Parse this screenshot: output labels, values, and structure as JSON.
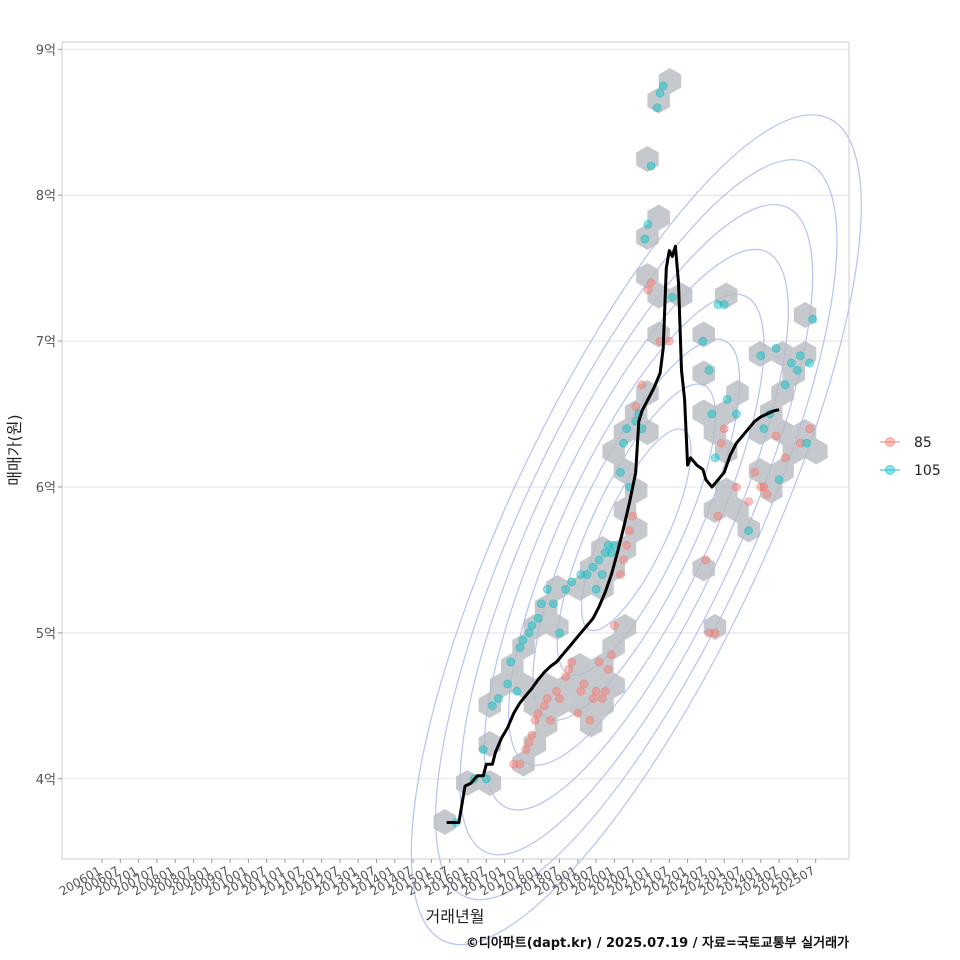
{
  "chart_data": {
    "type": "scatter",
    "ylabel": "매매가(원)",
    "xlabel": "거래년월",
    "caption": "©디아파트(dapt.kr) / 2025.07.19 / 자료=국토교통부 실거래가",
    "y_ticks": [
      {
        "value": 4,
        "label": "4억"
      },
      {
        "value": 5,
        "label": "5억"
      },
      {
        "value": 6,
        "label": "6억"
      },
      {
        "value": 7,
        "label": "7억"
      },
      {
        "value": 8,
        "label": "8억"
      },
      {
        "value": 9,
        "label": "9억"
      }
    ],
    "x_ticks": [
      "200601",
      "200607",
      "200701",
      "200707",
      "200801",
      "200807",
      "200901",
      "200907",
      "201001",
      "201007",
      "201101",
      "201107",
      "201201",
      "201207",
      "201301",
      "201307",
      "201401",
      "201407",
      "201501",
      "201507",
      "201601",
      "201607",
      "201701",
      "201707",
      "201801",
      "201807",
      "201901",
      "201907",
      "202001",
      "202007",
      "202101",
      "202107",
      "202201",
      "202207",
      "202301",
      "202307",
      "202401",
      "202407",
      "202501",
      "202507"
    ],
    "ylim": [
      3.45,
      9.05
    ],
    "grid": true,
    "legend": {
      "position": "right",
      "items": [
        {
          "name": "85",
          "color": "#F8766D"
        },
        {
          "name": "105",
          "color": "#00BFC4"
        }
      ]
    },
    "series": [
      {
        "name": "85",
        "color": "#F8766D",
        "points": [
          [
            "2017-04",
            4.1
          ],
          [
            "2017-06",
            4.1
          ],
          [
            "2017-08",
            4.2
          ],
          [
            "2017-09",
            4.25
          ],
          [
            "2017-10",
            4.3
          ],
          [
            "2017-11",
            4.4
          ],
          [
            "2017-12",
            4.45
          ],
          [
            "2018-02",
            4.5
          ],
          [
            "2018-03",
            4.55
          ],
          [
            "2018-04",
            4.4
          ],
          [
            "2018-06",
            4.6
          ],
          [
            "2018-07",
            4.55
          ],
          [
            "2018-09",
            4.7
          ],
          [
            "2018-10",
            4.75
          ],
          [
            "2018-11",
            4.8
          ],
          [
            "2019-01",
            4.45
          ],
          [
            "2019-02",
            4.6
          ],
          [
            "2019-03",
            4.65
          ],
          [
            "2019-05",
            4.4
          ],
          [
            "2019-06",
            4.55
          ],
          [
            "2019-07",
            4.6
          ],
          [
            "2019-08",
            4.8
          ],
          [
            "2019-09",
            4.55
          ],
          [
            "2019-10",
            4.6
          ],
          [
            "2019-11",
            4.75
          ],
          [
            "2019-12",
            4.85
          ],
          [
            "2020-01",
            5.05
          ],
          [
            "2020-03",
            5.4
          ],
          [
            "2020-04",
            5.5
          ],
          [
            "2020-05",
            5.6
          ],
          [
            "2020-06",
            5.7
          ],
          [
            "2020-07",
            5.8
          ],
          [
            "2020-08",
            6.55
          ],
          [
            "2020-10",
            6.7
          ],
          [
            "2020-12",
            7.35
          ],
          [
            "2021-01",
            7.4
          ],
          [
            "2021-04",
            7.0
          ],
          [
            "2021-07",
            7.0
          ],
          [
            "2022-07",
            5.5
          ],
          [
            "2022-08",
            5.0
          ],
          [
            "2022-10",
            5.0
          ],
          [
            "2022-11",
            5.8
          ],
          [
            "2022-12",
            6.3
          ],
          [
            "2023-01",
            6.4
          ],
          [
            "2023-05",
            6.0
          ],
          [
            "2023-09",
            5.9
          ],
          [
            "2023-11",
            6.1
          ],
          [
            "2024-01",
            6.0
          ],
          [
            "2024-02",
            6.0
          ],
          [
            "2024-03",
            5.95
          ],
          [
            "2024-06",
            6.35
          ],
          [
            "2024-09",
            6.2
          ],
          [
            "2025-02",
            6.3
          ],
          [
            "2025-05",
            6.4
          ]
        ]
      },
      {
        "name": "105",
        "color": "#00BFC4",
        "points": [
          [
            "2015-09",
            3.7
          ],
          [
            "2016-03",
            4.0
          ],
          [
            "2016-06",
            4.2
          ],
          [
            "2016-07",
            4.0
          ],
          [
            "2016-09",
            4.5
          ],
          [
            "2016-11",
            4.55
          ],
          [
            "2017-02",
            4.65
          ],
          [
            "2017-03",
            4.8
          ],
          [
            "2017-05",
            4.6
          ],
          [
            "2017-06",
            4.9
          ],
          [
            "2017-07",
            4.95
          ],
          [
            "2017-09",
            5.0
          ],
          [
            "2017-10",
            5.05
          ],
          [
            "2017-12",
            5.1
          ],
          [
            "2018-01",
            5.2
          ],
          [
            "2018-03",
            5.3
          ],
          [
            "2018-05",
            5.2
          ],
          [
            "2018-07",
            5.0
          ],
          [
            "2018-09",
            5.3
          ],
          [
            "2018-11",
            5.35
          ],
          [
            "2019-02",
            5.4
          ],
          [
            "2019-04",
            5.4
          ],
          [
            "2019-06",
            5.45
          ],
          [
            "2019-07",
            5.3
          ],
          [
            "2019-08",
            5.5
          ],
          [
            "2019-09",
            5.4
          ],
          [
            "2019-10",
            5.55
          ],
          [
            "2019-11",
            5.6
          ],
          [
            "2019-12",
            5.55
          ],
          [
            "2020-01",
            5.6
          ],
          [
            "2020-03",
            6.1
          ],
          [
            "2020-04",
            6.3
          ],
          [
            "2020-05",
            6.4
          ],
          [
            "2020-06",
            6.0
          ],
          [
            "2020-08",
            6.45
          ],
          [
            "2020-09",
            6.5
          ],
          [
            "2020-10",
            6.4
          ],
          [
            "2020-11",
            7.7
          ],
          [
            "2020-12",
            7.8
          ],
          [
            "2021-01",
            8.2
          ],
          [
            "2021-03",
            8.6
          ],
          [
            "2021-04",
            8.7
          ],
          [
            "2021-05",
            8.75
          ],
          [
            "2021-08",
            7.3
          ],
          [
            "2022-06",
            7.0
          ],
          [
            "2022-08",
            6.8
          ],
          [
            "2022-09",
            6.5
          ],
          [
            "2022-10",
            6.2
          ],
          [
            "2022-11",
            7.25
          ],
          [
            "2023-01",
            7.25
          ],
          [
            "2023-02",
            6.6
          ],
          [
            "2023-05",
            6.5
          ],
          [
            "2023-09",
            5.7
          ],
          [
            "2024-01",
            6.9
          ],
          [
            "2024-02",
            6.4
          ],
          [
            "2024-04",
            6.5
          ],
          [
            "2024-06",
            6.95
          ],
          [
            "2024-07",
            6.05
          ],
          [
            "2024-09",
            6.7
          ],
          [
            "2024-11",
            6.85
          ],
          [
            "2025-01",
            6.8
          ],
          [
            "2025-02",
            6.9
          ],
          [
            "2025-04",
            6.3
          ],
          [
            "2025-05",
            6.85
          ],
          [
            "2025-06",
            7.15
          ]
        ]
      }
    ],
    "trend_line": [
      [
        "2015-06",
        3.7
      ],
      [
        "2015-10",
        3.7
      ],
      [
        "2015-12",
        3.95
      ],
      [
        "2016-02",
        3.97
      ],
      [
        "2016-04",
        4.02
      ],
      [
        "2016-06",
        4.02
      ],
      [
        "2016-07",
        4.1
      ],
      [
        "2016-09",
        4.1
      ],
      [
        "2016-10",
        4.18
      ],
      [
        "2016-12",
        4.28
      ],
      [
        "2017-02",
        4.35
      ],
      [
        "2017-04",
        4.45
      ],
      [
        "2017-06",
        4.52
      ],
      [
        "2017-08",
        4.57
      ],
      [
        "2017-10",
        4.62
      ],
      [
        "2017-12",
        4.68
      ],
      [
        "2018-02",
        4.73
      ],
      [
        "2018-04",
        4.77
      ],
      [
        "2018-06",
        4.8
      ],
      [
        "2018-08",
        4.85
      ],
      [
        "2018-10",
        4.9
      ],
      [
        "2018-12",
        4.95
      ],
      [
        "2019-02",
        5.0
      ],
      [
        "2019-04",
        5.05
      ],
      [
        "2019-06",
        5.1
      ],
      [
        "2019-08",
        5.18
      ],
      [
        "2019-10",
        5.28
      ],
      [
        "2019-12",
        5.4
      ],
      [
        "2020-02",
        5.55
      ],
      [
        "2020-04",
        5.72
      ],
      [
        "2020-06",
        5.9
      ],
      [
        "2020-08",
        6.1
      ],
      [
        "2020-09",
        6.45
      ],
      [
        "2020-10",
        6.52
      ],
      [
        "2020-12",
        6.6
      ],
      [
        "2021-02",
        6.68
      ],
      [
        "2021-04",
        6.78
      ],
      [
        "2021-05",
        6.95
      ],
      [
        "2021-06",
        7.5
      ],
      [
        "2021-07",
        7.62
      ],
      [
        "2021-08",
        7.58
      ],
      [
        "2021-09",
        7.65
      ],
      [
        "2021-10",
        7.4
      ],
      [
        "2021-11",
        6.8
      ],
      [
        "2021-12",
        6.6
      ],
      [
        "2022-01",
        6.15
      ],
      [
        "2022-02",
        6.2
      ],
      [
        "2022-04",
        6.15
      ],
      [
        "2022-06",
        6.12
      ],
      [
        "2022-07",
        6.05
      ],
      [
        "2022-09",
        6.0
      ],
      [
        "2022-11",
        6.05
      ],
      [
        "2023-01",
        6.1
      ],
      [
        "2023-03",
        6.22
      ],
      [
        "2023-05",
        6.3
      ],
      [
        "2023-07",
        6.35
      ],
      [
        "2023-09",
        6.4
      ],
      [
        "2023-11",
        6.45
      ],
      [
        "2024-01",
        6.48
      ],
      [
        "2024-03",
        6.5
      ],
      [
        "2024-05",
        6.52
      ],
      [
        "2024-07",
        6.53
      ]
    ],
    "density_contours": 8,
    "hexbin": true
  }
}
